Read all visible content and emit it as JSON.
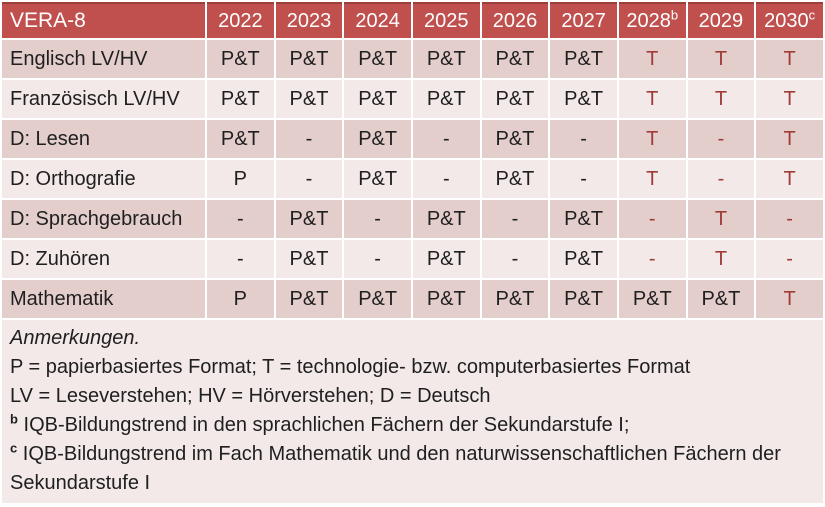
{
  "colors": {
    "header_bg": "#C0504D",
    "header_text": "#FFFFFF",
    "band_dark": "#E3CECC",
    "band_light": "#F2E9E8",
    "body_text": "#1F1F1F",
    "accent_text": "#9E3B38"
  },
  "table": {
    "title": "VERA-8",
    "columns": [
      {
        "label": "2022",
        "sup": ""
      },
      {
        "label": "2023",
        "sup": ""
      },
      {
        "label": "2024",
        "sup": ""
      },
      {
        "label": "2025",
        "sup": ""
      },
      {
        "label": "2026",
        "sup": ""
      },
      {
        "label": "2027",
        "sup": ""
      },
      {
        "label": "2028",
        "sup": "b"
      },
      {
        "label": "2029",
        "sup": ""
      },
      {
        "label": "2030",
        "sup": "c"
      }
    ],
    "tech_columns_start": 6,
    "rows": [
      {
        "label": "Englisch LV/HV",
        "cells": [
          "P&T",
          "P&T",
          "P&T",
          "P&T",
          "P&T",
          "P&T",
          "T",
          "T",
          "T"
        ]
      },
      {
        "label": "Französisch LV/HV",
        "cells": [
          "P&T",
          "P&T",
          "P&T",
          "P&T",
          "P&T",
          "P&T",
          "T",
          "T",
          "T"
        ]
      },
      {
        "label": "D: Lesen",
        "cells": [
          "P&T",
          "-",
          "P&T",
          "-",
          "P&T",
          "-",
          "T",
          "-",
          "T"
        ]
      },
      {
        "label": "D: Orthografie",
        "cells": [
          "P",
          "-",
          "P&T",
          "-",
          "P&T",
          "-",
          "T",
          "-",
          "T"
        ]
      },
      {
        "label": "D: Sprachgebrauch",
        "cells": [
          "-",
          "P&T",
          "-",
          "P&T",
          "-",
          "P&T",
          "-",
          "T",
          "-"
        ]
      },
      {
        "label": "D: Zuhören",
        "cells": [
          "-",
          "P&T",
          "-",
          "P&T",
          "-",
          "P&T",
          "-",
          "T",
          "-"
        ]
      },
      {
        "label": "Mathematik",
        "cells": [
          "P",
          "P&T",
          "P&T",
          "P&T",
          "P&T",
          "P&T",
          "P&T",
          "P&T",
          "T"
        ]
      }
    ]
  },
  "notes": {
    "title": "Anmerkungen.",
    "legend_format": "P = papierbasiertes Format; T = technologie- bzw. computerbasiertes Format",
    "legend_abbrev": "LV = Leseverstehen; HV = Hörverstehen; D = Deutsch",
    "footnote_b": {
      "sup": "b",
      "text": "IQB-Bildungstrend in den sprachlichen Fächern der Sekundarstufe I;"
    },
    "footnote_c": {
      "sup": "c",
      "text": "IQB-Bildungstrend im Fach Mathematik und den naturwissenschaftlichen Fächern der Sekundarstufe I"
    }
  }
}
